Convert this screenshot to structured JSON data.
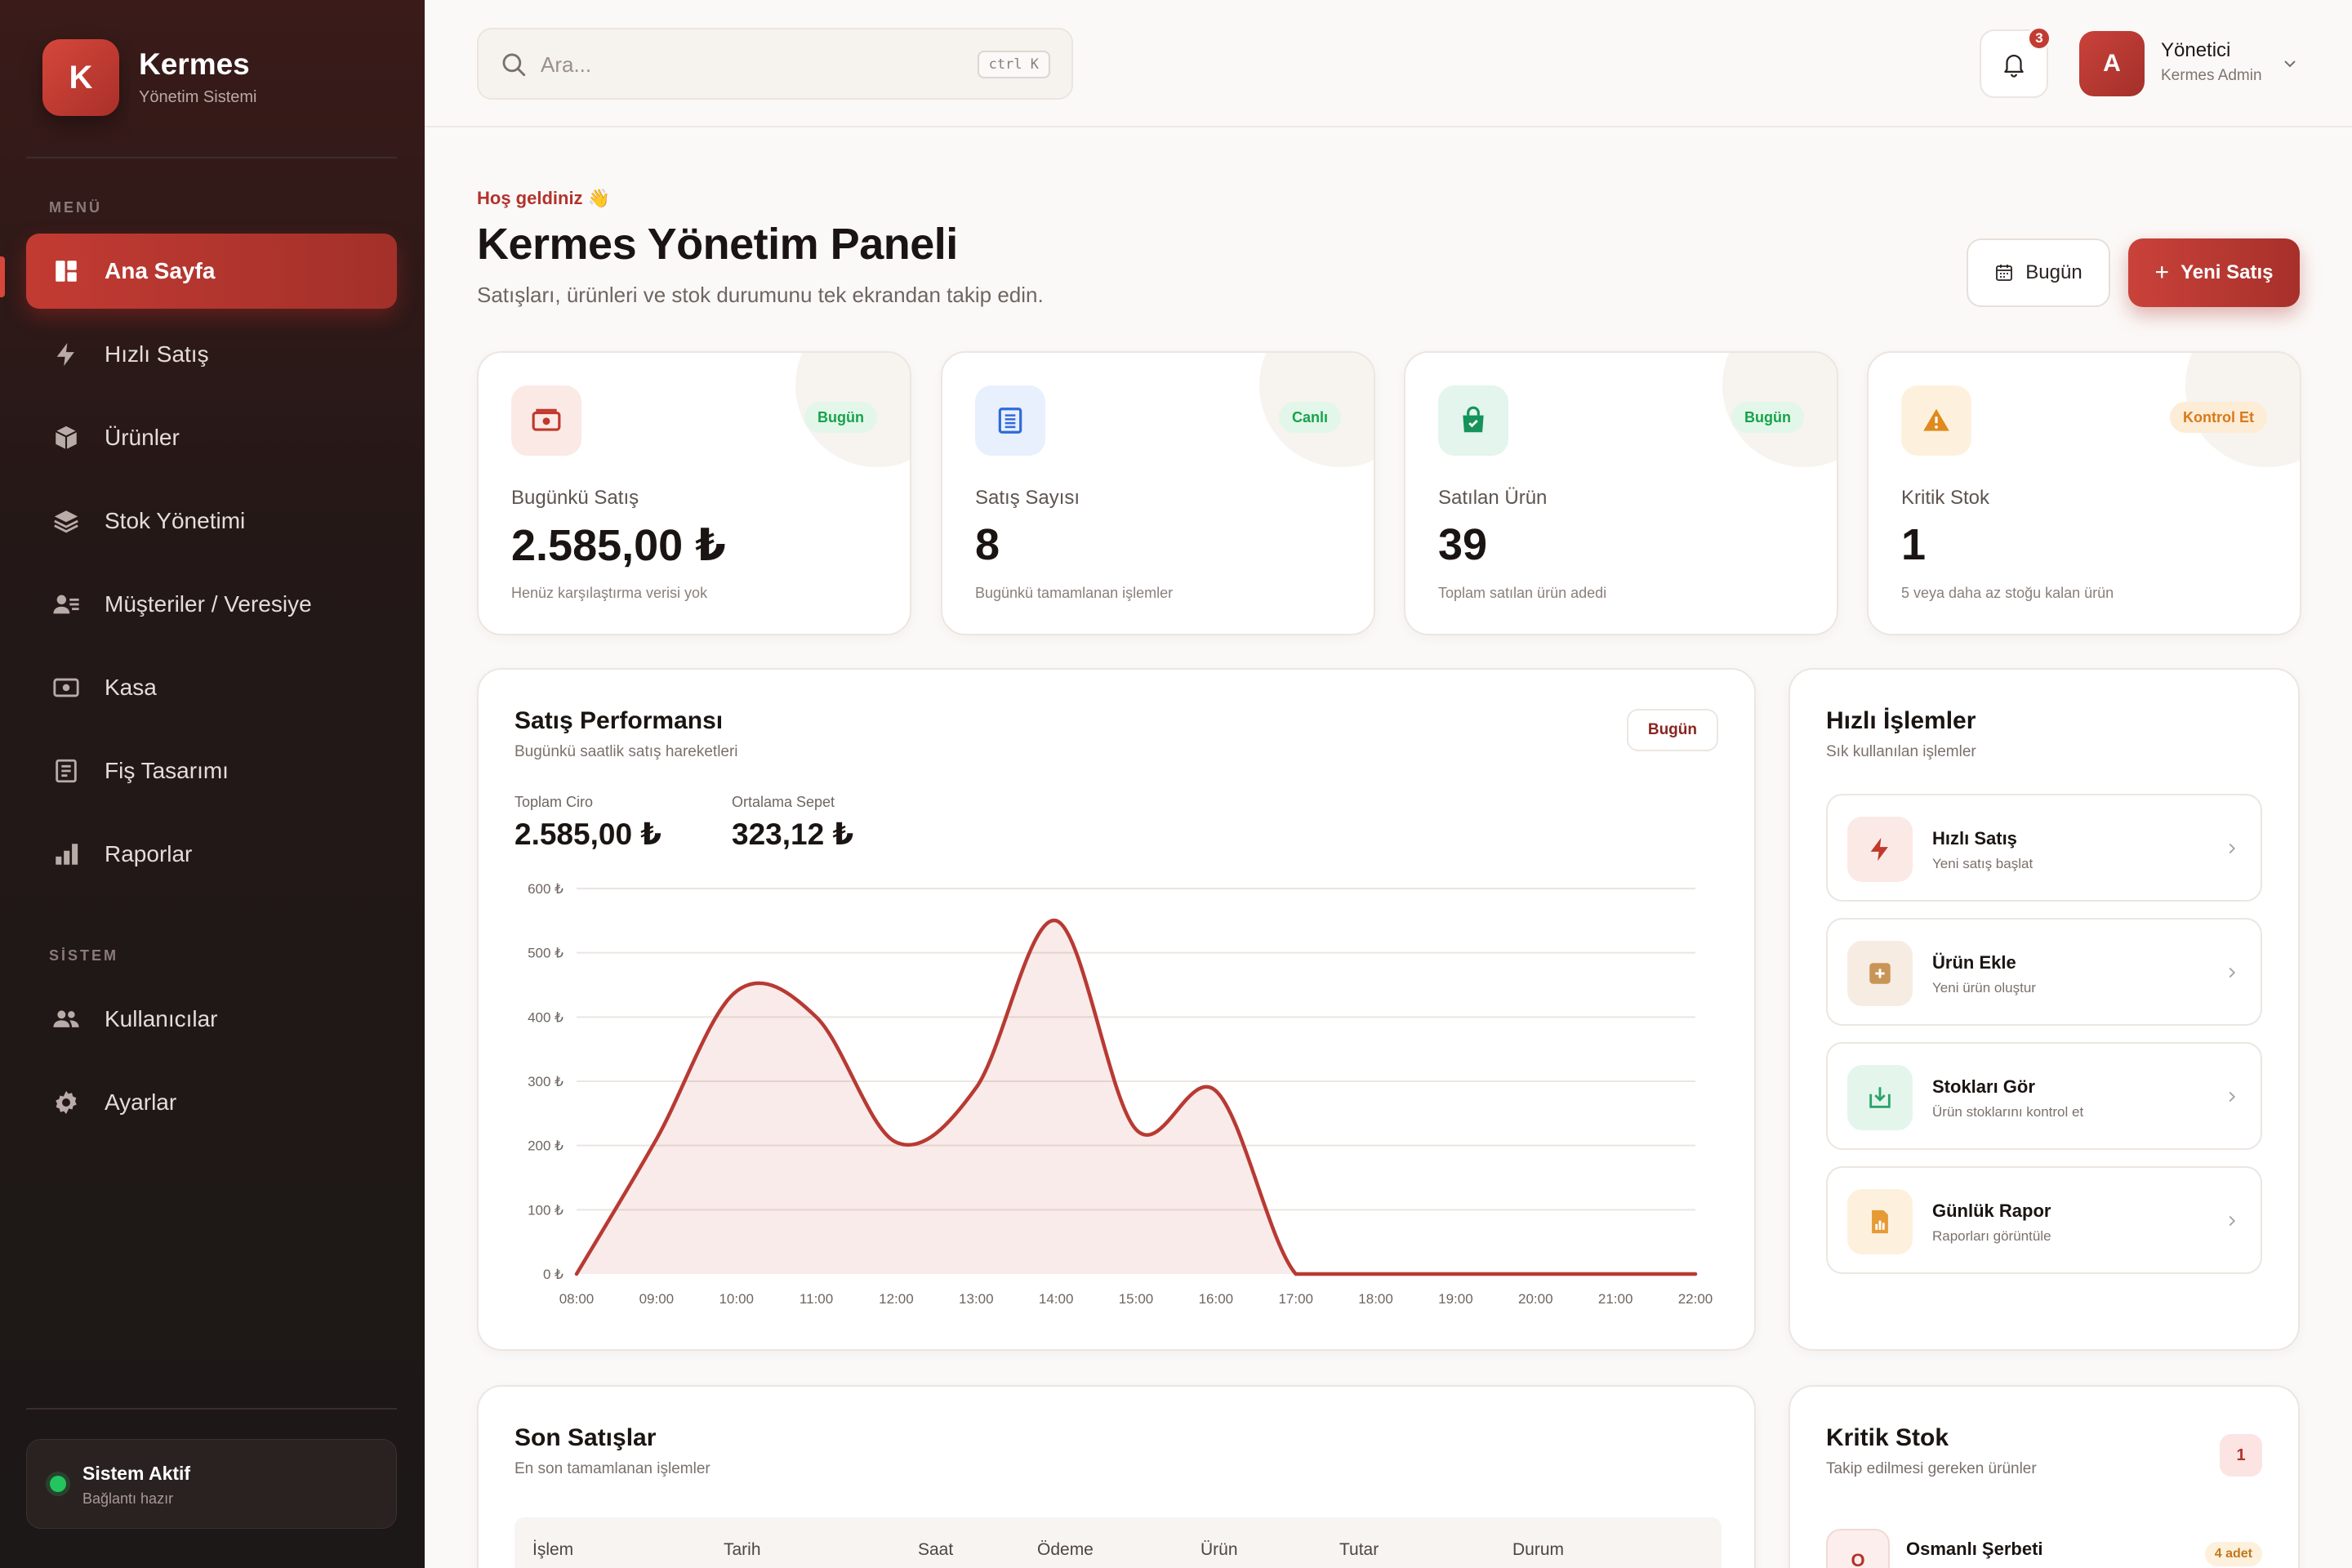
{
  "brand": {
    "letter": "K",
    "name": "Kermes",
    "subtitle": "Yönetim Sistemi"
  },
  "sidebar": {
    "menu_title": "MENÜ",
    "items": [
      {
        "label": "Ana Sayfa",
        "icon": "dashboard-icon",
        "active": true
      },
      {
        "label": "Hızlı Satış",
        "icon": "lightning-icon"
      },
      {
        "label": "Ürünler",
        "icon": "box-icon"
      },
      {
        "label": "Stok Yönetimi",
        "icon": "layers-icon"
      },
      {
        "label": "Müşteriler / Veresiye",
        "icon": "customer-list-icon"
      },
      {
        "label": "Kasa",
        "icon": "cash-icon"
      },
      {
        "label": "Fiş Tasarımı",
        "icon": "receipt-icon"
      },
      {
        "label": "Raporlar",
        "icon": "bar-chart-icon"
      }
    ],
    "system_title": "SİSTEM",
    "system_items": [
      {
        "label": "Kullanıcılar",
        "icon": "users-icon"
      },
      {
        "label": "Ayarlar",
        "icon": "gear-icon"
      }
    ],
    "status": {
      "title": "Sistem Aktif",
      "subtitle": "Bağlantı hazır",
      "color": "#22c55e"
    }
  },
  "topbar": {
    "search_placeholder": "Ara...",
    "shortcut": "ctrl K",
    "notifications": "3",
    "user": {
      "initial": "A",
      "name": "Yönetici",
      "role": "Kermes Admin"
    }
  },
  "header": {
    "welcome": "Hoş geldiniz 👋",
    "title": "Kermes Yönetim Paneli",
    "subtitle": "Satışları, ürünleri ve stok durumunu tek ekrandan takip edin.",
    "today_button": "Bugün",
    "new_sale_button": "Yeni Satış"
  },
  "stats": [
    {
      "label": "Bugünkü Satış",
      "value": "2.585,00 ₺",
      "note": "Henüz karşılaştırma verisi yok",
      "badge": "Bugün",
      "icon": "money-icon"
    },
    {
      "label": "Satış Sayısı",
      "value": "8",
      "note": "Bugünkü tamamlanan işlemler",
      "badge": "Canlı",
      "icon": "document-icon"
    },
    {
      "label": "Satılan Ürün",
      "value": "39",
      "note": "Toplam satılan ürün adedi",
      "badge": "Bugün",
      "icon": "shopping-bag-icon"
    },
    {
      "label": "Kritik Stok",
      "value": "1",
      "note": "5 veya daha az stoğu kalan ürün",
      "badge": "Kontrol Et",
      "icon": "warning-icon"
    }
  ],
  "chart_card": {
    "title": "Satış Performansı",
    "subtitle": "Bugünkü saatlik satış hareketleri",
    "badge": "Bugün",
    "metrics": [
      {
        "label": "Toplam Ciro",
        "value": "2.585,00 ₺"
      },
      {
        "label": "Ortalama Sepet",
        "value": "323,12 ₺"
      }
    ]
  },
  "chart_data": {
    "type": "area",
    "x": [
      "08:00",
      "09:00",
      "10:00",
      "11:00",
      "12:00",
      "13:00",
      "14:00",
      "15:00",
      "16:00",
      "17:00",
      "18:00",
      "19:00",
      "20:00",
      "21:00",
      "22:00"
    ],
    "series": [
      {
        "values": [
          0,
          210,
          440,
          400,
          205,
          290,
          550,
          225,
          285,
          0,
          0,
          0,
          0,
          0,
          0
        ]
      }
    ],
    "ylim": [
      0,
      600
    ],
    "yticks": [
      "0 ₺",
      "100 ₺",
      "200 ₺",
      "300 ₺",
      "400 ₺",
      "500 ₺",
      "600 ₺"
    ],
    "grid": true,
    "color": "#b83a33"
  },
  "quick_actions": {
    "title": "Hızlı İşlemler",
    "subtitle": "Sık kullanılan işlemler",
    "items": [
      {
        "title": "Hızlı Satış",
        "subtitle": "Yeni satış başlat",
        "icon": "lightning-icon"
      },
      {
        "title": "Ürün Ekle",
        "subtitle": "Yeni ürün oluştur",
        "icon": "add-box-icon"
      },
      {
        "title": "Stokları Gör",
        "subtitle": "Ürün stoklarını kontrol et",
        "icon": "download-box-icon"
      },
      {
        "title": "Günlük Rapor",
        "subtitle": "Raporları görüntüle",
        "icon": "report-icon"
      }
    ]
  },
  "recent_sales": {
    "title": "Son Satışlar",
    "subtitle": "En son tamamlanan işlemler",
    "columns": [
      "İşlem",
      "Tarih",
      "Saat",
      "Ödeme",
      "Ürün",
      "Tutar",
      "Durum"
    ]
  },
  "critical_stock": {
    "title": "Kritik Stok",
    "subtitle": "Takip edilmesi gereken ürünler",
    "count": "1",
    "items": [
      {
        "initial": "O",
        "name": "Osmanlı Şerbeti",
        "badge": "4 adet"
      }
    ]
  }
}
